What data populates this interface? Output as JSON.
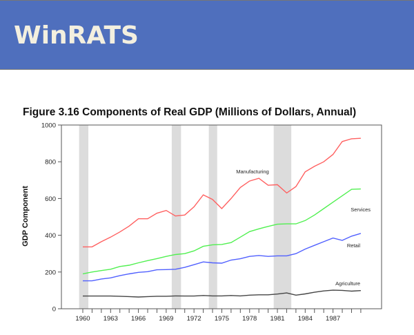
{
  "header": {
    "logo_text": "WinRATS",
    "background": "#4f6fbd"
  },
  "chart_data": {
    "type": "line",
    "title": "Figure 3.16 Components of Real GDP (Millions of Dollars, Annual)",
    "xlabel": "",
    "ylabel": "GDP Component",
    "ylim": [
      0,
      1000
    ],
    "xlim": [
      1957.8,
      1991.2
    ],
    "yticks": [
      "0",
      "200",
      "400",
      "600",
      "800",
      "1000"
    ],
    "xticks": [
      "1960",
      "1963",
      "1966",
      "1969",
      "1972",
      "1975",
      "1978",
      "1981",
      "1984",
      "1987"
    ],
    "grid": false,
    "x": [
      1960,
      1961,
      1962,
      1963,
      1964,
      1965,
      1966,
      1967,
      1968,
      1969,
      1970,
      1971,
      1972,
      1973,
      1974,
      1975,
      1976,
      1977,
      1978,
      1979,
      1980,
      1981,
      1982,
      1983,
      1984,
      1985,
      1986,
      1987,
      1988,
      1989,
      1990
    ],
    "recessions": [
      [
        1959.6,
        1960.6
      ],
      [
        1969.6,
        1970.6
      ],
      [
        1973.6,
        1974.5
      ],
      [
        1980.6,
        1982.5
      ]
    ],
    "series": [
      {
        "name": "Manufacturing",
        "color": "#ff6060",
        "values": [
          337,
          337,
          365,
          390,
          418,
          450,
          490,
          490,
          520,
          535,
          505,
          510,
          555,
          620,
          595,
          545,
          600,
          660,
          695,
          710,
          672,
          675,
          630,
          665,
          745,
          775,
          800,
          840,
          910,
          925,
          928
        ]
      },
      {
        "name": "Services",
        "color": "#50f050",
        "values": [
          190,
          200,
          208,
          215,
          230,
          237,
          250,
          262,
          273,
          285,
          295,
          300,
          315,
          340,
          348,
          350,
          360,
          390,
          420,
          435,
          448,
          460,
          462,
          462,
          480,
          510,
          545,
          580,
          615,
          650,
          652
        ]
      },
      {
        "name": "Retail",
        "color": "#5060ff",
        "values": [
          152,
          152,
          162,
          168,
          180,
          190,
          198,
          202,
          212,
          213,
          215,
          225,
          240,
          255,
          250,
          248,
          265,
          272,
          285,
          290,
          285,
          288,
          288,
          300,
          325,
          345,
          365,
          385,
          372,
          395,
          410
        ]
      },
      {
        "name": "Agriculture",
        "color": "#444444",
        "values": [
          69,
          69,
          69,
          69,
          68,
          66,
          64,
          66,
          68,
          68,
          70,
          69,
          69,
          72,
          70,
          70,
          72,
          70,
          74,
          76,
          76,
          80,
          86,
          74,
          81,
          90,
          97,
          101,
          100,
          96,
          99
        ]
      }
    ],
    "annotations": [
      "Manufacturing",
      "Services",
      "Retail",
      "Agriculture"
    ]
  }
}
